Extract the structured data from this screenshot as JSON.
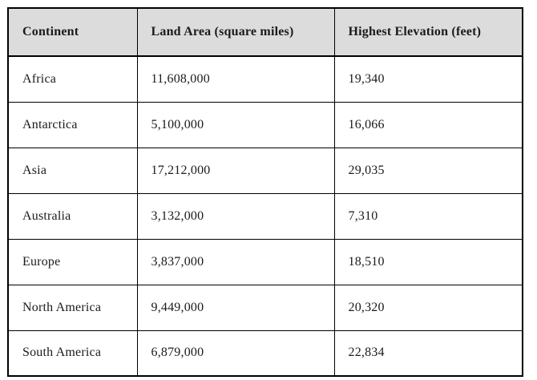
{
  "table": {
    "headers": [
      "Continent",
      "Land Area (square miles)",
      "Highest Elevation (feet)"
    ],
    "rows": [
      {
        "continent": "Africa",
        "land_area": "11,608,000",
        "highest_elevation": "19,340"
      },
      {
        "continent": "Antarctica",
        "land_area": "5,100,000",
        "highest_elevation": "16,066"
      },
      {
        "continent": "Asia",
        "land_area": "17,212,000",
        "highest_elevation": "29,035"
      },
      {
        "continent": "Australia",
        "land_area": "3,132,000",
        "highest_elevation": "7,310"
      },
      {
        "continent": "Europe",
        "land_area": "3,837,000",
        "highest_elevation": "18,510"
      },
      {
        "continent": "North America",
        "land_area": "9,449,000",
        "highest_elevation": "20,320"
      },
      {
        "continent": "South America",
        "land_area": "6,879,000",
        "highest_elevation": "22,834"
      }
    ]
  },
  "colors": {
    "header_background": "#dcdcdc",
    "border": "#000000",
    "text": "#1a1a1a",
    "page_background": "#ffffff"
  }
}
